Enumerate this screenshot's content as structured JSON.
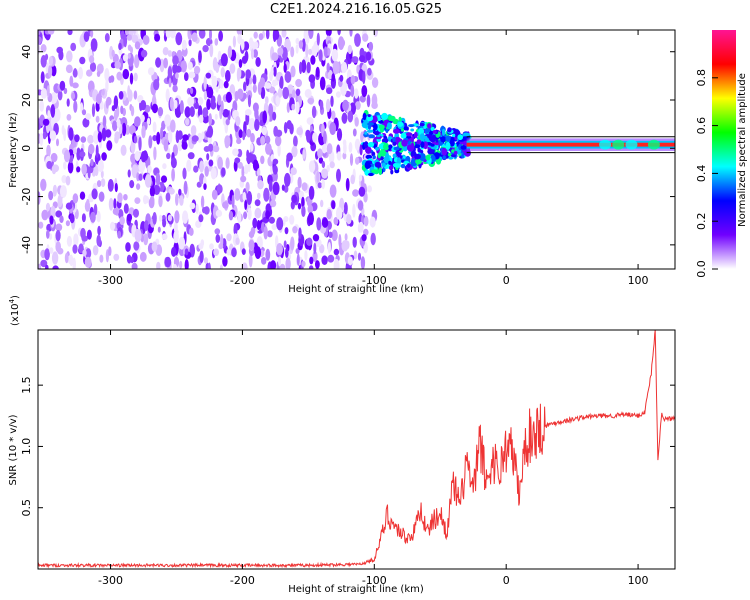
{
  "title": "C2E1.2024.216.16.05.G25",
  "chart_data": [
    {
      "type": "heatmap",
      "xlabel": "Height of straight line (km)",
      "ylabel": "Frequency (Hz)",
      "xlim": [
        -355,
        128
      ],
      "ylim": [
        -50,
        49
      ],
      "xticks": [
        -300,
        -200,
        -100,
        0,
        100
      ],
      "yticks": [
        -40,
        -20,
        0,
        20,
        40
      ],
      "colorbar": {
        "label": "Normalized spectral amplitude",
        "range": [
          0,
          1
        ],
        "ticks": [
          "0.0",
          "0.2",
          "0.4",
          "0.6",
          "0.8"
        ],
        "colors": [
          "#ffffff",
          "#7000ff",
          "#0000ff",
          "#00ffff",
          "#00ff00",
          "#ffff00",
          "#ff0000",
          "#ff1493"
        ]
      },
      "features": {
        "noise_region_x": [
          -355,
          -105
        ],
        "signal_line_freq": 1.5
      }
    },
    {
      "type": "line",
      "xlabel": "Height of straight line (km)",
      "ylabel": "SNR (10 * v/v)",
      "yscale_label": "(x10",
      "yscale_exp": "4",
      "yscale_close": ")",
      "xlim": [
        -355,
        128
      ],
      "ylim": [
        0,
        1.95
      ],
      "xticks": [
        -300,
        -200,
        -100,
        0,
        100
      ],
      "yticks": [
        0.5,
        1.0,
        1.5
      ],
      "series": [
        {
          "color": "#ee3333",
          "x": [
            -355,
            -300,
            -250,
            -200,
            -150,
            -110,
            -100,
            -95,
            -90,
            -85,
            -80,
            -75,
            -70,
            -65,
            -60,
            -55,
            -50,
            -45,
            -40,
            -35,
            -30,
            -25,
            -20,
            -15,
            -10,
            -5,
            0,
            5,
            10,
            15,
            20,
            25,
            30,
            40,
            50,
            60,
            70,
            80,
            90,
            100,
            105,
            110,
            113,
            115,
            118,
            120,
            128
          ],
          "y": [
            0.03,
            0.03,
            0.03,
            0.03,
            0.03,
            0.04,
            0.08,
            0.25,
            0.45,
            0.35,
            0.3,
            0.25,
            0.3,
            0.5,
            0.3,
            0.4,
            0.45,
            0.3,
            0.7,
            0.5,
            0.9,
            0.6,
            1.05,
            0.7,
            0.9,
            0.8,
            1.0,
            0.95,
            0.6,
            1.05,
            1.1,
            1.15,
            1.17,
            1.2,
            1.22,
            1.24,
            1.25,
            1.25,
            1.26,
            1.25,
            1.28,
            1.6,
            1.95,
            0.9,
            1.28,
            1.22,
            1.23
          ]
        }
      ]
    }
  ]
}
